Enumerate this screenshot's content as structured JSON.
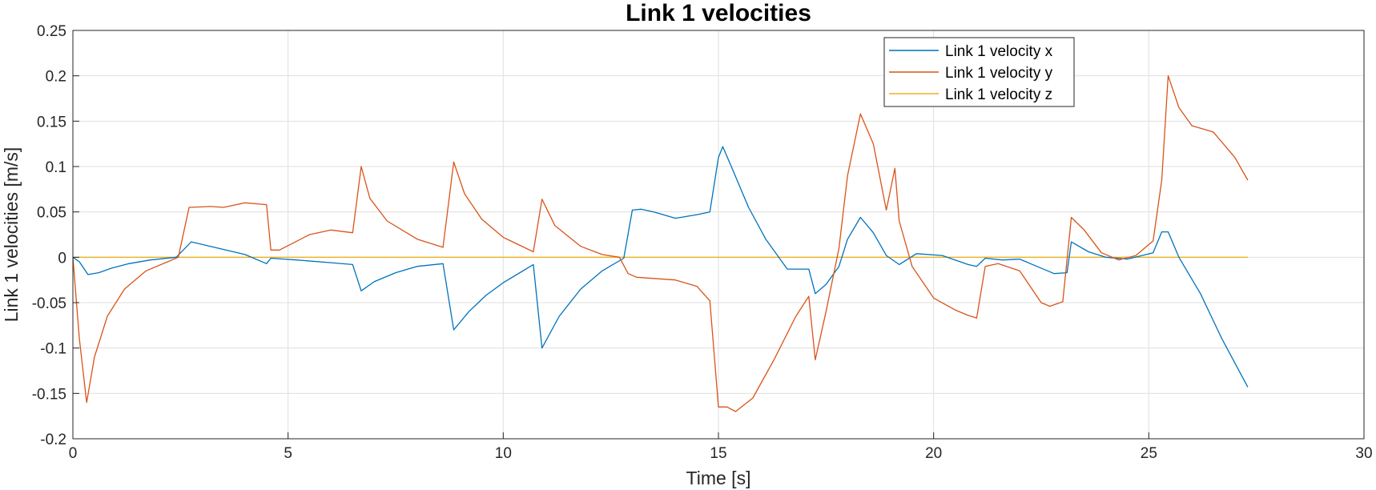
{
  "chart_data": {
    "type": "line",
    "title": "Link 1 velocities",
    "xlabel": "Time [s]",
    "ylabel": "Link 1 velocities [m/s]",
    "xlim": [
      0,
      30
    ],
    "ylim": [
      -0.2,
      0.25
    ],
    "xticks": [
      0,
      5,
      10,
      15,
      20,
      25,
      30
    ],
    "yticks": [
      -0.2,
      -0.15,
      -0.1,
      -0.05,
      0,
      0.05,
      0.1,
      0.15,
      0.2,
      0.25
    ],
    "grid": true,
    "legend_position": "top-right",
    "series": [
      {
        "name": "Link 1 velocity x",
        "color": "#0072BD",
        "points": [
          [
            0,
            0
          ],
          [
            0.15,
            -0.005
          ],
          [
            0.35,
            -0.019
          ],
          [
            0.6,
            -0.017
          ],
          [
            0.9,
            -0.012
          ],
          [
            1.3,
            -0.007
          ],
          [
            1.8,
            -0.003
          ],
          [
            2.4,
            0
          ],
          [
            2.75,
            0.017
          ],
          [
            3.2,
            0.012
          ],
          [
            4.0,
            0.003
          ],
          [
            4.5,
            -0.007
          ],
          [
            4.6,
            -0.001
          ],
          [
            5.2,
            -0.003
          ],
          [
            6.0,
            -0.006
          ],
          [
            6.5,
            -0.008
          ],
          [
            6.7,
            -0.037
          ],
          [
            7.0,
            -0.027
          ],
          [
            7.5,
            -0.017
          ],
          [
            8.0,
            -0.01
          ],
          [
            8.6,
            -0.007
          ],
          [
            8.85,
            -0.08
          ],
          [
            9.2,
            -0.06
          ],
          [
            9.6,
            -0.042
          ],
          [
            10.0,
            -0.028
          ],
          [
            10.7,
            -0.008
          ],
          [
            10.9,
            -0.1
          ],
          [
            11.3,
            -0.065
          ],
          [
            11.8,
            -0.035
          ],
          [
            12.3,
            -0.015
          ],
          [
            12.8,
            -0.001
          ],
          [
            13.0,
            0.052
          ],
          [
            13.2,
            0.053
          ],
          [
            13.5,
            0.05
          ],
          [
            14.0,
            0.043
          ],
          [
            14.5,
            0.047
          ],
          [
            14.8,
            0.05
          ],
          [
            15.0,
            0.11
          ],
          [
            15.1,
            0.122
          ],
          [
            15.3,
            0.1
          ],
          [
            15.7,
            0.055
          ],
          [
            16.1,
            0.02
          ],
          [
            16.6,
            -0.013
          ],
          [
            17.1,
            -0.013
          ],
          [
            17.25,
            -0.04
          ],
          [
            17.5,
            -0.03
          ],
          [
            17.8,
            -0.01
          ],
          [
            18.0,
            0.02
          ],
          [
            18.3,
            0.044
          ],
          [
            18.6,
            0.027
          ],
          [
            18.9,
            0.002
          ],
          [
            19.2,
            -0.008
          ],
          [
            19.6,
            0.004
          ],
          [
            20.2,
            0.002
          ],
          [
            20.8,
            -0.008
          ],
          [
            21.0,
            -0.01
          ],
          [
            21.2,
            -0.001
          ],
          [
            21.6,
            -0.003
          ],
          [
            22.0,
            -0.002
          ],
          [
            22.4,
            -0.01
          ],
          [
            22.8,
            -0.018
          ],
          [
            23.1,
            -0.017
          ],
          [
            23.2,
            0.017
          ],
          [
            23.6,
            0.006
          ],
          [
            24.0,
            0
          ],
          [
            24.5,
            -0.002
          ],
          [
            25.1,
            0.005
          ],
          [
            25.3,
            0.028
          ],
          [
            25.45,
            0.028
          ],
          [
            25.7,
            0.0
          ],
          [
            26.2,
            -0.04
          ],
          [
            26.7,
            -0.09
          ],
          [
            27.3,
            -0.143
          ]
        ]
      },
      {
        "name": "Link 1 velocity y",
        "color": "#D95319",
        "points": [
          [
            0,
            0
          ],
          [
            0.15,
            -0.09
          ],
          [
            0.32,
            -0.16
          ],
          [
            0.5,
            -0.11
          ],
          [
            0.8,
            -0.065
          ],
          [
            1.2,
            -0.035
          ],
          [
            1.7,
            -0.015
          ],
          [
            2.2,
            -0.005
          ],
          [
            2.45,
            0
          ],
          [
            2.7,
            0.055
          ],
          [
            3.2,
            0.056
          ],
          [
            3.5,
            0.055
          ],
          [
            4.0,
            0.06
          ],
          [
            4.5,
            0.058
          ],
          [
            4.6,
            0.008
          ],
          [
            4.8,
            0.008
          ],
          [
            5.5,
            0.025
          ],
          [
            6.0,
            0.03
          ],
          [
            6.5,
            0.027
          ],
          [
            6.7,
            0.1
          ],
          [
            6.9,
            0.065
          ],
          [
            7.3,
            0.04
          ],
          [
            8.0,
            0.02
          ],
          [
            8.6,
            0.011
          ],
          [
            8.85,
            0.105
          ],
          [
            9.1,
            0.07
          ],
          [
            9.5,
            0.042
          ],
          [
            10.0,
            0.022
          ],
          [
            10.7,
            0.006
          ],
          [
            10.9,
            0.064
          ],
          [
            11.2,
            0.035
          ],
          [
            11.8,
            0.012
          ],
          [
            12.3,
            0.003
          ],
          [
            12.7,
            0
          ],
          [
            12.9,
            -0.018
          ],
          [
            13.1,
            -0.022
          ],
          [
            14.0,
            -0.025
          ],
          [
            14.5,
            -0.032
          ],
          [
            14.8,
            -0.048
          ],
          [
            15.0,
            -0.165
          ],
          [
            15.2,
            -0.165
          ],
          [
            15.4,
            -0.17
          ],
          [
            15.8,
            -0.155
          ],
          [
            16.3,
            -0.112
          ],
          [
            16.8,
            -0.065
          ],
          [
            17.1,
            -0.043
          ],
          [
            17.25,
            -0.113
          ],
          [
            17.5,
            -0.06
          ],
          [
            17.8,
            0.01
          ],
          [
            18.0,
            0.09
          ],
          [
            18.3,
            0.158
          ],
          [
            18.6,
            0.125
          ],
          [
            18.9,
            0.052
          ],
          [
            19.1,
            0.098
          ],
          [
            19.2,
            0.04
          ],
          [
            19.5,
            -0.01
          ],
          [
            20.0,
            -0.045
          ],
          [
            20.5,
            -0.058
          ],
          [
            20.8,
            -0.064
          ],
          [
            21.0,
            -0.067
          ],
          [
            21.2,
            -0.01
          ],
          [
            21.5,
            -0.007
          ],
          [
            22.0,
            -0.015
          ],
          [
            22.5,
            -0.05
          ],
          [
            22.7,
            -0.054
          ],
          [
            23.0,
            -0.049
          ],
          [
            23.2,
            0.044
          ],
          [
            23.5,
            0.03
          ],
          [
            23.9,
            0.005
          ],
          [
            24.3,
            -0.003
          ],
          [
            24.7,
            0.002
          ],
          [
            25.1,
            0.018
          ],
          [
            25.3,
            0.085
          ],
          [
            25.45,
            0.2
          ],
          [
            25.7,
            0.165
          ],
          [
            26.0,
            0.145
          ],
          [
            26.5,
            0.138
          ],
          [
            27.0,
            0.11
          ],
          [
            27.3,
            0.085
          ]
        ]
      },
      {
        "name": "Link 1 velocity z",
        "color": "#EDB120",
        "points": [
          [
            0,
            0
          ],
          [
            27.3,
            0
          ]
        ]
      }
    ]
  }
}
